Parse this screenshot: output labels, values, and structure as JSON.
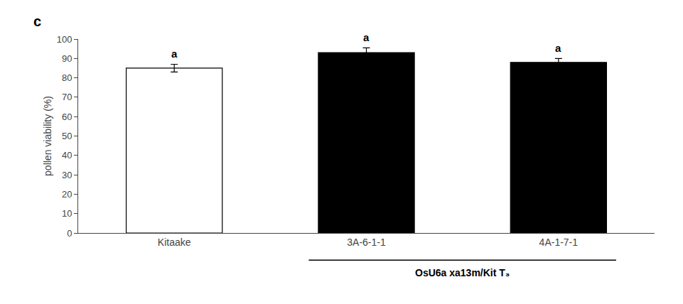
{
  "chart_data": {
    "type": "bar",
    "categories": [
      "Kitaake",
      "3A-6-1-1",
      "4A-1-7-1"
    ],
    "values": [
      85.0,
      93.0,
      88.0
    ],
    "errors": [
      2.0,
      2.5,
      2.0
    ],
    "colors": [
      "#ffffff",
      "#000000",
      "#000000"
    ],
    "ylabel": "pollen viability (%)",
    "ylim": [
      0,
      100
    ],
    "yticks": [
      0,
      10,
      20,
      30,
      40,
      50,
      60,
      70,
      80,
      90,
      100
    ],
    "grid": false,
    "annotations": [
      {
        "category": "Kitaake",
        "text": "a"
      },
      {
        "category": "3A-6-1-1",
        "text": "a"
      },
      {
        "category": "4A-1-7-1",
        "text": "a"
      },
      {
        "categories": [
          "3A-6-1-1",
          "4A-1-7-1"
        ],
        "text": "OsU6a xa13m/Kit T₃"
      },
      {
        "text": "c"
      }
    ]
  }
}
